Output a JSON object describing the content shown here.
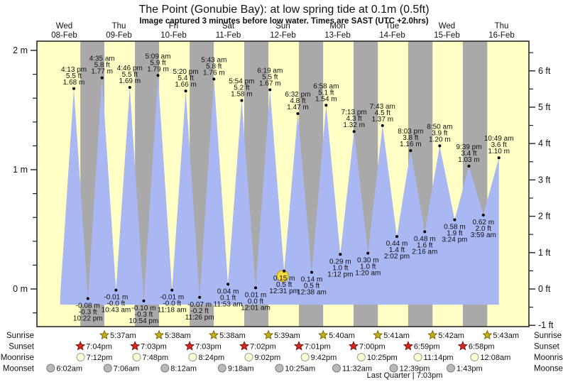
{
  "chart_data": {
    "type": "area",
    "title": "The Point (Gonubie Bay): at low  spring tide at 0.1m (0.5ft)",
    "subtitle": "Image captured 3 minutes before low water. Times are SAST (UTC +2.0hrs)",
    "days": [
      {
        "weekday": "Wed",
        "date": "08-Feb"
      },
      {
        "weekday": "Thu",
        "date": "09-Feb"
      },
      {
        "weekday": "Fri",
        "date": "10-Feb"
      },
      {
        "weekday": "Sat",
        "date": "11-Feb"
      },
      {
        "weekday": "Sun",
        "date": "12-Feb"
      },
      {
        "weekday": "Mon",
        "date": "13-Feb"
      },
      {
        "weekday": "Tue",
        "date": "14-Feb"
      },
      {
        "weekday": "Wed",
        "date": "15-Feb"
      },
      {
        "weekday": "Thu",
        "date": "16-Feb"
      }
    ],
    "y_left": {
      "unit": "m",
      "labels": [
        "2 m",
        "1 m",
        "0 m"
      ],
      "label_values": [
        2,
        1,
        0
      ],
      "range": [
        -0.32,
        2.08
      ]
    },
    "y_right": {
      "unit": "ft",
      "labels": [
        "6 ft",
        "5 ft",
        "4 ft",
        "3 ft",
        "2 ft",
        "1 ft",
        "0 ft",
        "-1 ft"
      ],
      "label_values": [
        6,
        5,
        4,
        3,
        2,
        1,
        0,
        -1
      ],
      "range": [
        -1.05,
        6.8
      ]
    },
    "tide_events": [
      {
        "day": 0,
        "type": "high",
        "time": "4:13 pm",
        "m": "1.68",
        "ft": "5.5"
      },
      {
        "day": 0,
        "type": "low",
        "time": "10:22 pm",
        "m": "-0.08",
        "ft": "-0.3"
      },
      {
        "day": 1,
        "type": "high",
        "time": "4:35 am",
        "m": "1.77",
        "ft": "5.8"
      },
      {
        "day": 1,
        "type": "low",
        "time": "10:43 am",
        "m": "-0.01",
        "ft": "-0.0"
      },
      {
        "day": 1,
        "type": "high",
        "time": "4:46 pm",
        "m": "1.69",
        "ft": "5.5"
      },
      {
        "day": 1,
        "type": "low",
        "time": "10:54 pm",
        "m": "-0.10",
        "ft": "-0.3"
      },
      {
        "day": 2,
        "type": "high",
        "time": "5:09 am",
        "m": "1.79",
        "ft": "5.9"
      },
      {
        "day": 2,
        "type": "low",
        "time": "11:18 am",
        "m": "-0.01",
        "ft": "-0.0"
      },
      {
        "day": 2,
        "type": "high",
        "time": "5:20 pm",
        "m": "1.66",
        "ft": "5.4"
      },
      {
        "day": 2,
        "type": "low",
        "time": "11:26 pm",
        "m": "-0.07",
        "ft": "-0.2"
      },
      {
        "day": 3,
        "type": "high",
        "time": "5:43 am",
        "m": "1.76",
        "ft": "5.8"
      },
      {
        "day": 3,
        "type": "low",
        "time": "11:53 am",
        "m": "0.04",
        "ft": "0.1"
      },
      {
        "day": 3,
        "type": "high",
        "time": "5:54 pm",
        "m": "1.58",
        "ft": "5.2"
      },
      {
        "day": 4,
        "type": "low",
        "time": "12:01 am",
        "m": "0.01",
        "ft": "0.0"
      },
      {
        "day": 4,
        "type": "high",
        "time": "6:19 am",
        "m": "1.67",
        "ft": "5.5"
      },
      {
        "day": 4,
        "type": "low",
        "time": "12:31 pm",
        "m": "0.15",
        "ft": "0.5",
        "highlighted": true
      },
      {
        "day": 4,
        "type": "high",
        "time": "6:32 pm",
        "m": "1.47",
        "ft": "4.8"
      },
      {
        "day": 5,
        "type": "low",
        "time": "12:38 am",
        "m": "0.14",
        "ft": "0.5"
      },
      {
        "day": 5,
        "type": "high",
        "time": "6:58 am",
        "m": "1.54",
        "ft": "5.1"
      },
      {
        "day": 5,
        "type": "low",
        "time": "1:12 pm",
        "m": "0.29",
        "ft": "1.0"
      },
      {
        "day": 5,
        "type": "high",
        "time": "7:13 pm",
        "m": "1.32",
        "ft": "4.3"
      },
      {
        "day": 6,
        "type": "low",
        "time": "1:20 am",
        "m": "0.30",
        "ft": "1.0"
      },
      {
        "day": 6,
        "type": "high",
        "time": "7:43 am",
        "m": "1.37",
        "ft": "4.5"
      },
      {
        "day": 6,
        "type": "low",
        "time": "2:02 pm",
        "m": "0.44",
        "ft": "1.4"
      },
      {
        "day": 6,
        "type": "high",
        "time": "8:03 pm",
        "m": "1.16",
        "ft": "3.8"
      },
      {
        "day": 7,
        "type": "low",
        "time": "2:16 am",
        "m": "0.48",
        "ft": "1.6"
      },
      {
        "day": 7,
        "type": "high",
        "time": "8:50 am",
        "m": "1.20",
        "ft": "3.9"
      },
      {
        "day": 7,
        "type": "low",
        "time": "3:24 pm",
        "m": "0.58",
        "ft": "1.9"
      },
      {
        "day": 7,
        "type": "high",
        "time": "9:39 pm",
        "m": "1.03",
        "ft": "3.4"
      },
      {
        "day": 8,
        "type": "low",
        "time": "3:59 am",
        "m": "0.62",
        "ft": "2.0"
      },
      {
        "day": 8,
        "type": "high",
        "time": "10:49 am",
        "m": "1.10",
        "ft": "3.6"
      }
    ],
    "sun_moon": {
      "row_labels": [
        "Sunrise",
        "Sunset",
        "Moonrise",
        "Moonset"
      ],
      "sunrise": [
        {
          "day": 1,
          "time": "5:37am"
        },
        {
          "day": 2,
          "time": "5:38am"
        },
        {
          "day": 3,
          "time": "5:38am"
        },
        {
          "day": 4,
          "time": "5:39am"
        },
        {
          "day": 5,
          "time": "5:40am"
        },
        {
          "day": 6,
          "time": "5:41am"
        },
        {
          "day": 7,
          "time": "5:42am"
        },
        {
          "day": 8,
          "time": "5:43am"
        }
      ],
      "sunset": [
        {
          "day": 0,
          "time": "7:04pm"
        },
        {
          "day": 1,
          "time": "7:03pm"
        },
        {
          "day": 2,
          "time": "7:03pm"
        },
        {
          "day": 3,
          "time": "7:02pm"
        },
        {
          "day": 4,
          "time": "7:01pm"
        },
        {
          "day": 5,
          "time": "7:00pm"
        },
        {
          "day": 6,
          "time": "6:59pm"
        },
        {
          "day": 7,
          "time": "6:58pm"
        }
      ],
      "moonrise": [
        {
          "day": 0,
          "time": "7:12pm"
        },
        {
          "day": 1,
          "time": "7:48pm"
        },
        {
          "day": 2,
          "time": "8:24pm"
        },
        {
          "day": 3,
          "time": "9:02pm"
        },
        {
          "day": 4,
          "time": "9:42pm"
        },
        {
          "day": 5,
          "time": "10:25pm"
        },
        {
          "day": 6,
          "time": "11:14pm"
        },
        {
          "day": 8,
          "time": "12:08am"
        }
      ],
      "moonset": [
        {
          "day": 0,
          "time": "6:02am"
        },
        {
          "day": 1,
          "time": "7:06am"
        },
        {
          "day": 2,
          "time": "8:12am"
        },
        {
          "day": 3,
          "time": "9:18am"
        },
        {
          "day": 4,
          "time": "10:25am"
        },
        {
          "day": 5,
          "time": "11:32am"
        },
        {
          "day": 6,
          "time": "12:39pm"
        },
        {
          "day": 7,
          "time": "1:43pm"
        }
      ],
      "moon_phase": "Last Quarter | 7:03pm"
    },
    "colors": {
      "day_band": "#ffffc6",
      "night_band": "#a9a9a9",
      "tide_fill": "#a9b7f2",
      "day_label_red": "#ee3333",
      "highlight_marker": "#f2d93c",
      "sunrise_star": "#c3ad1d",
      "sunset_star": "#d42a1e",
      "moonrise_circle": "#ffffd6",
      "moonset_circle": "#b9b9b9"
    }
  }
}
